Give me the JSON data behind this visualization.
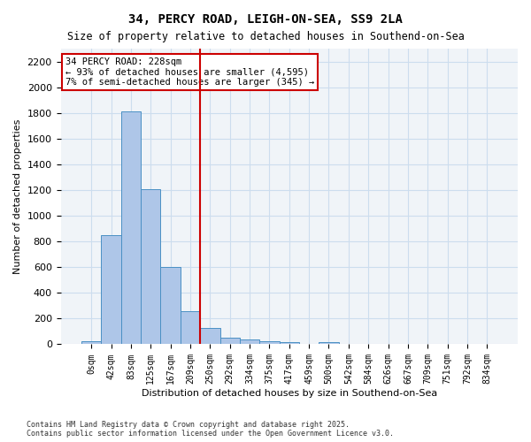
{
  "title1": "34, PERCY ROAD, LEIGH-ON-SEA, SS9 2LA",
  "title2": "Size of property relative to detached houses in Southend-on-Sea",
  "xlabel": "Distribution of detached houses by size in Southend-on-Sea",
  "ylabel": "Number of detached properties",
  "bar_color": "#aec6e8",
  "bar_edge_color": "#4a90c4",
  "vline_color": "#cc0000",
  "vline_x": 5.5,
  "grid_color": "#ccddee",
  "background_color": "#f0f4f8",
  "annotation_text": "34 PERCY ROAD: 228sqm\n← 93% of detached houses are smaller (4,595)\n7% of semi-detached houses are larger (345) →",
  "annotation_box_color": "#ffffff",
  "annotation_box_edge": "#cc0000",
  "categories": [
    "0sqm",
    "42sqm",
    "83sqm",
    "125sqm",
    "167sqm",
    "209sqm",
    "250sqm",
    "292sqm",
    "334sqm",
    "375sqm",
    "417sqm",
    "459sqm",
    "500sqm",
    "542sqm",
    "584sqm",
    "626sqm",
    "667sqm",
    "709sqm",
    "751sqm",
    "792sqm",
    "834sqm"
  ],
  "values": [
    25,
    850,
    1810,
    1210,
    600,
    260,
    130,
    50,
    35,
    25,
    20,
    0,
    20,
    0,
    0,
    0,
    0,
    0,
    0,
    0,
    0
  ],
  "ylim": [
    0,
    2300
  ],
  "yticks": [
    0,
    200,
    400,
    600,
    800,
    1000,
    1200,
    1400,
    1600,
    1800,
    2000,
    2200
  ],
  "footer": "Contains HM Land Registry data © Crown copyright and database right 2025.\nContains public sector information licensed under the Open Government Licence v3.0."
}
